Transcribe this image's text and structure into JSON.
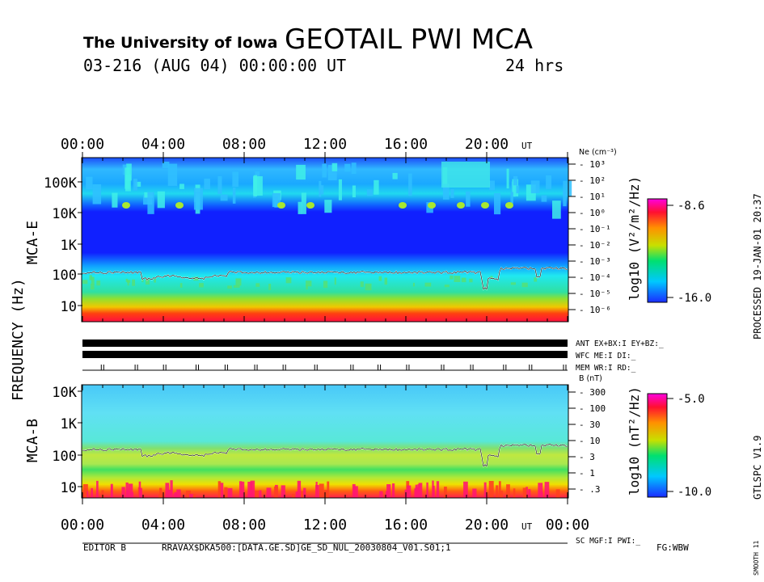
{
  "header": {
    "institution": "The University of Iowa",
    "title": "GEOTAIL PWI MCA",
    "date_line": "03-216 (AUG 04) 00:00:00 UT",
    "duration": "24 hrs"
  },
  "footer": {
    "editor": "EDITOR B",
    "file_path": "RRAVAX$DKA500:[DATA.GE.SD]GE_SD_NUL_20030804_V01.S01;1",
    "fg": "FG:WBW",
    "smooth": "SMOOTH 11",
    "processed": "PROCESSED 19-JAN-01  20:37",
    "program": "GTLSPC   V1.9"
  },
  "status_lines": {
    "ant": "ANT EX+BX:I  EY+BZ:_",
    "wfc": "WFC ME:I     DI:_",
    "mem": "MEM WR:I     RD:_",
    "sc": "SC MGF:I     PWI:_"
  },
  "chart_data": [
    {
      "type": "heatmap",
      "panel": "MCA-E",
      "ylabel": "MCA-E",
      "shared_ylabel": "FREQUENCY (Hz)",
      "x_tick_labels": [
        "00:00",
        "04:00",
        "08:00",
        "12:00",
        "16:00",
        "20:00"
      ],
      "x_unit_label": "UT",
      "y_tick_labels": [
        "100K",
        "10K",
        "1K",
        "100",
        "10"
      ],
      "y_scale": "log",
      "right_axis_title": "Ne (cm⁻³)",
      "right_axis_labels": [
        "10³",
        "10²",
        "10¹",
        "10⁰",
        "10⁻¹",
        "10⁻²",
        "10⁻³",
        "10⁻⁴",
        "10⁻⁵",
        "10⁻⁶"
      ],
      "colorbar_label": "log10 (V²/m²/Hz)",
      "colorbar_max": "-8.6",
      "colorbar_min": "-16.0"
    },
    {
      "type": "heatmap",
      "panel": "MCA-B",
      "ylabel": "MCA-B",
      "x_tick_labels": [
        "00:00",
        "04:00",
        "08:00",
        "12:00",
        "16:00",
        "20:00",
        "00:00"
      ],
      "x_unit_label": "UT",
      "y_tick_labels": [
        "10K",
        "1K",
        "100",
        "10"
      ],
      "y_scale": "log",
      "right_axis_title": "B (nT)",
      "right_axis_labels": [
        "300",
        "100",
        "30",
        "10",
        "3",
        "1",
        ".3"
      ],
      "colorbar_label": "log10 (nT²/Hz)",
      "colorbar_max": "-5.0",
      "colorbar_min": "-10.0"
    }
  ]
}
